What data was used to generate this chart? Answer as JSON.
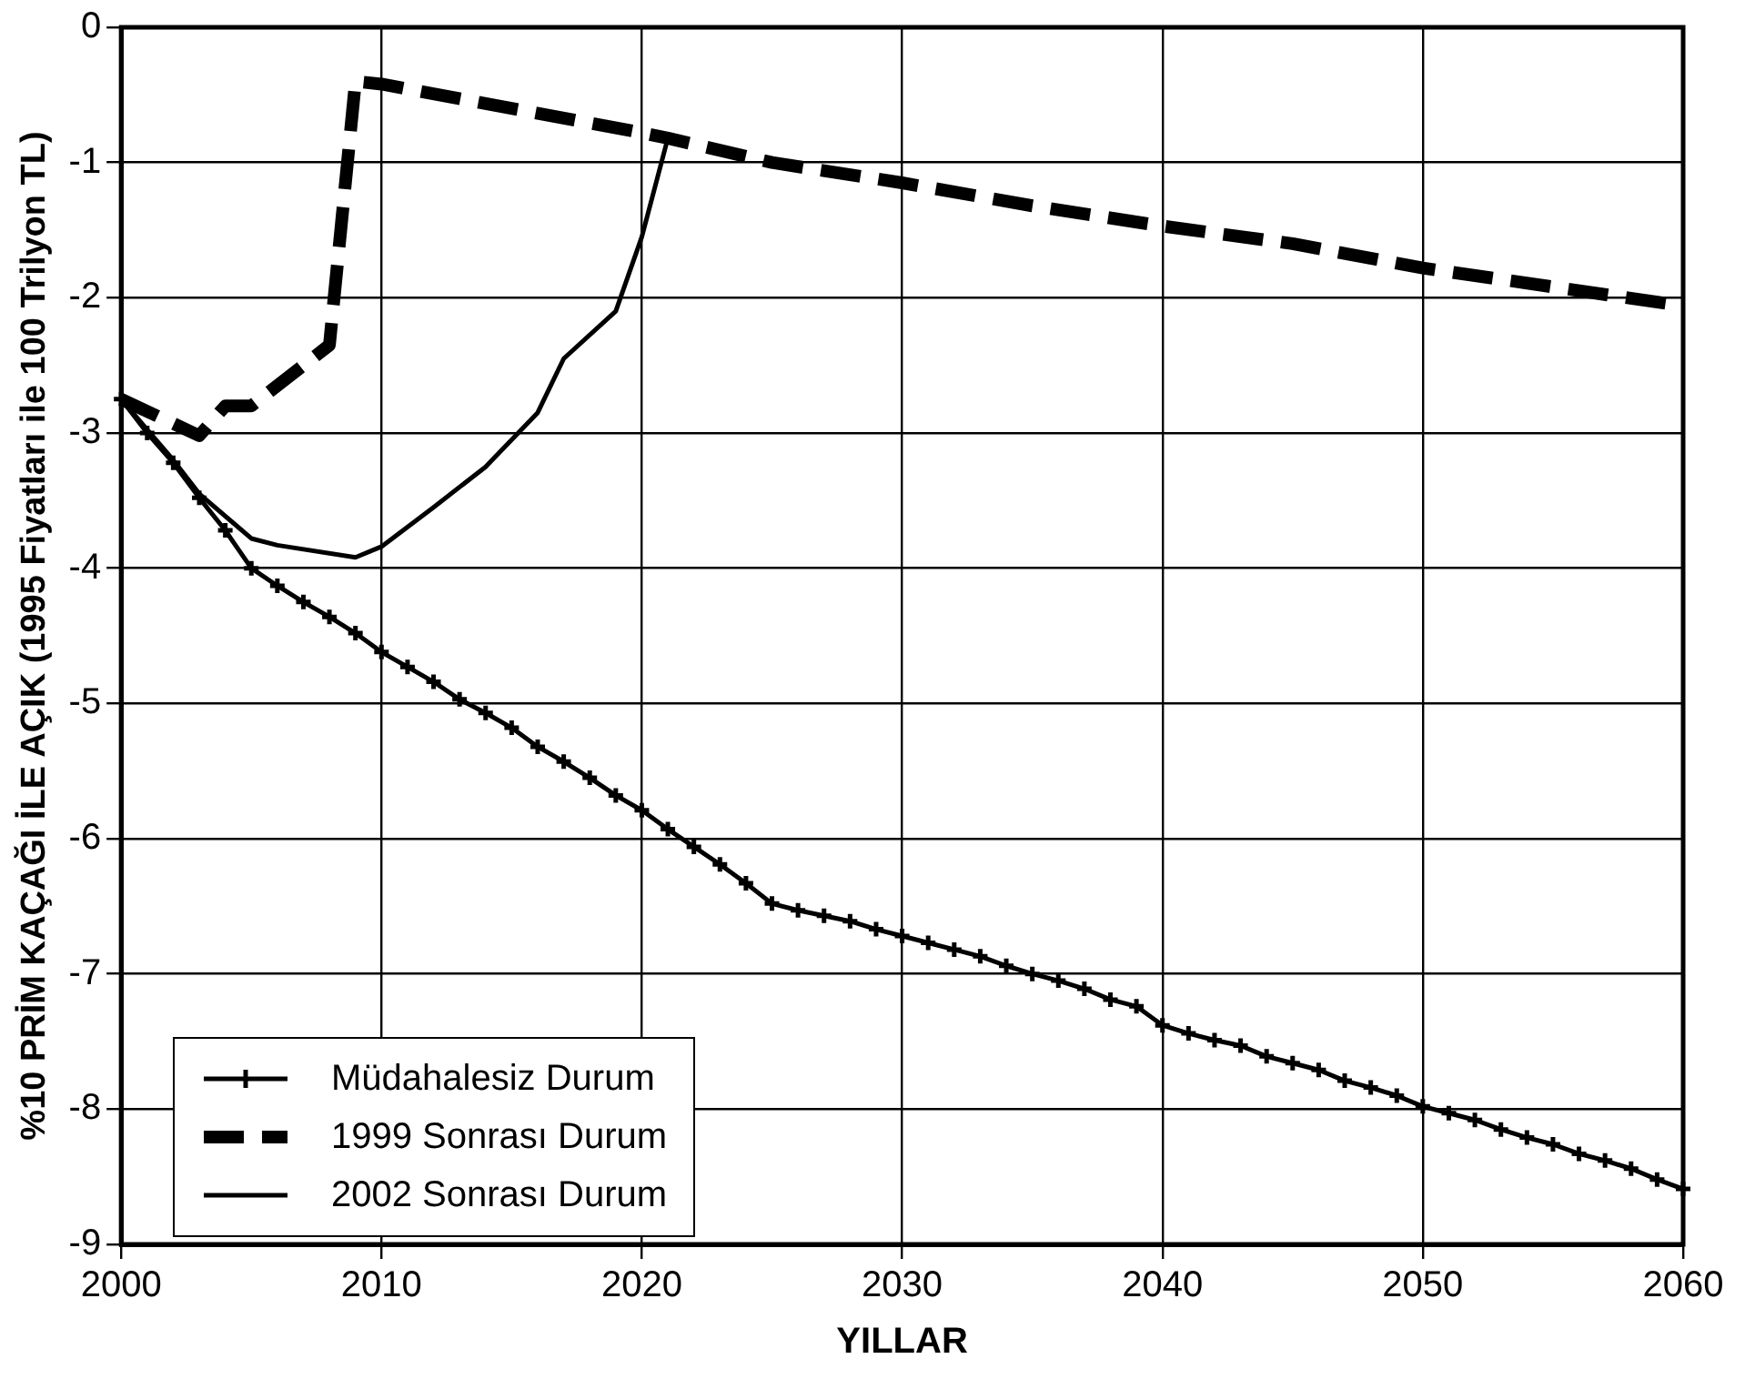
{
  "chart_data": {
    "type": "line",
    "xlabel": "YILLAR",
    "ylabel": "%10 PRİM KAÇAĞI İLE AÇIK (1995 Fiyatları ile 100 Trilyon TL)",
    "xlim": [
      2000,
      2060
    ],
    "xticks": [
      2000,
      2010,
      2020,
      2030,
      2040,
      2050,
      2060
    ],
    "ylim": [
      -9,
      0
    ],
    "yticks": [
      -9,
      -8,
      -7,
      -6,
      -5,
      -4,
      -3,
      -2,
      -1,
      0
    ],
    "grid": true,
    "legend": "bottom left",
    "series": [
      {
        "name": "Müdahalesiz Durum",
        "color": "#000000",
        "marker": "cross",
        "line_style": "solid",
        "x": [
          2000,
          2001,
          2002,
          2003,
          2004,
          2005,
          2006,
          2007,
          2008,
          2009,
          2010,
          2011,
          2012,
          2013,
          2014,
          2015,
          2016,
          2017,
          2018,
          2019,
          2020,
          2021,
          2022,
          2023,
          2024,
          2025,
          2026,
          2027,
          2028,
          2029,
          2030,
          2031,
          2032,
          2033,
          2034,
          2035,
          2036,
          2037,
          2038,
          2039,
          2040,
          2041,
          2042,
          2043,
          2044,
          2045,
          2046,
          2047,
          2048,
          2049,
          2050,
          2051,
          2052,
          2053,
          2054,
          2055,
          2056,
          2057,
          2058,
          2059,
          2060
        ],
        "values": [
          -2.75,
          -3.0,
          -3.22,
          -3.48,
          -3.72,
          -4.0,
          -4.13,
          -4.25,
          -4.36,
          -4.48,
          -4.62,
          -4.73,
          -4.84,
          -4.97,
          -5.07,
          -5.18,
          -5.32,
          -5.43,
          -5.55,
          -5.68,
          -5.79,
          -5.93,
          -6.06,
          -6.19,
          -6.33,
          -6.48,
          -6.53,
          -6.57,
          -6.61,
          -6.67,
          -6.72,
          -6.77,
          -6.82,
          -6.87,
          -6.94,
          -7.0,
          -7.05,
          -7.11,
          -7.19,
          -7.24,
          -7.38,
          -7.44,
          -7.49,
          -7.53,
          -7.61,
          -7.66,
          -7.71,
          -7.79,
          -7.84,
          -7.9,
          -7.98,
          -8.03,
          -8.08,
          -8.15,
          -8.21,
          -8.26,
          -8.33,
          -8.38,
          -8.44,
          -8.52,
          -8.59
        ]
      },
      {
        "name": "1999 Sonrası Durum",
        "color": "#000000",
        "marker": "none",
        "line_style": "dashed",
        "x": [
          2000,
          2003,
          2004,
          2005,
          2008,
          2009,
          2010,
          2020,
          2021,
          2025,
          2030,
          2035,
          2040,
          2045,
          2050,
          2055,
          2060
        ],
        "values": [
          -2.75,
          -3.02,
          -2.8,
          -2.8,
          -2.35,
          -0.4,
          -0.42,
          -0.78,
          -0.82,
          -1.0,
          -1.15,
          -1.32,
          -1.47,
          -1.6,
          -1.78,
          -1.92,
          -2.06
        ]
      },
      {
        "name": "2002 Sonrası Durum",
        "color": "#000000",
        "marker": "none",
        "line_style": "solid",
        "x": [
          2000,
          2002,
          2003,
          2005,
          2006,
          2009,
          2010,
          2012,
          2014,
          2016,
          2017,
          2019,
          2020,
          2021
        ],
        "values": [
          -2.75,
          -3.2,
          -3.45,
          -3.78,
          -3.83,
          -3.92,
          -3.84,
          -3.55,
          -3.25,
          -2.85,
          -2.45,
          -2.1,
          -1.55,
          -0.82
        ]
      }
    ]
  }
}
